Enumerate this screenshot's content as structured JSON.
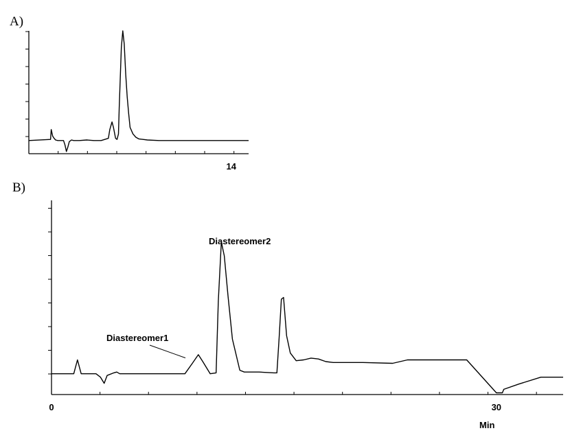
{
  "chart_data": [
    {
      "panel_label": "A)",
      "type": "line",
      "x_tick_labels": [
        {
          "value": 14,
          "label": "14"
        }
      ],
      "xlim": [
        0,
        15.2
      ],
      "ylim": [
        -0.12,
        1.0
      ],
      "series": [
        {
          "x": [
            0,
            1.5,
            1.55,
            1.65,
            1.75,
            1.85,
            2.0,
            2.4,
            2.5,
            2.6,
            2.7,
            2.8,
            2.95,
            3.1,
            3.5,
            4.0,
            4.5,
            5.0,
            5.5,
            5.6,
            5.75,
            5.85,
            6.0,
            6.1,
            6.2,
            6.25,
            6.4,
            6.5,
            6.6,
            6.7,
            6.8,
            6.9,
            7.0,
            7.2,
            7.4,
            7.6,
            7.9,
            8.2,
            9.0,
            11.0,
            13.0,
            15.2
          ],
          "y": [
            0,
            0.01,
            0.1,
            0.04,
            0.02,
            0.005,
            0,
            0,
            -0.04,
            -0.1,
            -0.06,
            -0.01,
            0.005,
            0,
            0,
            0.005,
            0,
            0,
            0.02,
            0.1,
            0.17,
            0.12,
            0.02,
            0.01,
            0.06,
            0.3,
            0.85,
            1.0,
            0.88,
            0.6,
            0.4,
            0.25,
            0.12,
            0.06,
            0.03,
            0.015,
            0.01,
            0.005,
            0,
            0,
            0,
            0
          ]
        }
      ]
    },
    {
      "panel_label": "B)",
      "type": "line",
      "xlabel": "Min",
      "x_tick_labels": [
        {
          "value": 0,
          "label": "0"
        },
        {
          "value": 30,
          "label": "30"
        }
      ],
      "xlim": [
        0,
        34.5
      ],
      "ylim": [
        -0.12,
        1.0
      ],
      "annotations": [
        {
          "label": "Diastereomer1",
          "x": 9.4,
          "y": 0.115
        },
        {
          "label": "Diastereomer2",
          "x": 10.9,
          "y": 0.77
        }
      ],
      "series": [
        {
          "x": [
            0,
            1.5,
            1.75,
            2.0,
            2.3,
            3.0,
            3.3,
            3.55,
            3.75,
            4.2,
            4.4,
            4.6,
            5.0,
            9.0,
            9.5,
            9.9,
            10.2,
            10.7,
            11.1,
            11.25,
            11.45,
            11.65,
            11.9,
            12.2,
            12.7,
            13.0,
            14.0,
            15.0,
            15.2,
            15.35,
            15.5,
            15.65,
            15.85,
            16.1,
            16.5,
            17.0,
            17.5,
            18.0,
            18.5,
            19.0,
            21.0,
            23.0,
            24.0,
            25.0,
            28.0,
            30.0,
            30.4,
            30.5,
            31.5,
            33.0,
            34.5
          ],
          "y": [
            0,
            0,
            0.08,
            0,
            0,
            0,
            -0.02,
            -0.055,
            -0.01,
            0.005,
            0.01,
            0,
            0,
            0,
            0.06,
            0.11,
            0.07,
            0,
            0.005,
            0.42,
            0.76,
            0.68,
            0.45,
            0.2,
            0.02,
            0.01,
            0.01,
            0.005,
            0.005,
            0.21,
            0.43,
            0.44,
            0.22,
            0.12,
            0.075,
            0.08,
            0.09,
            0.085,
            0.07,
            0.065,
            0.065,
            0.06,
            0.08,
            0.08,
            0.08,
            -0.11,
            -0.11,
            -0.09,
            -0.06,
            -0.02,
            -0.02
          ]
        }
      ]
    }
  ]
}
